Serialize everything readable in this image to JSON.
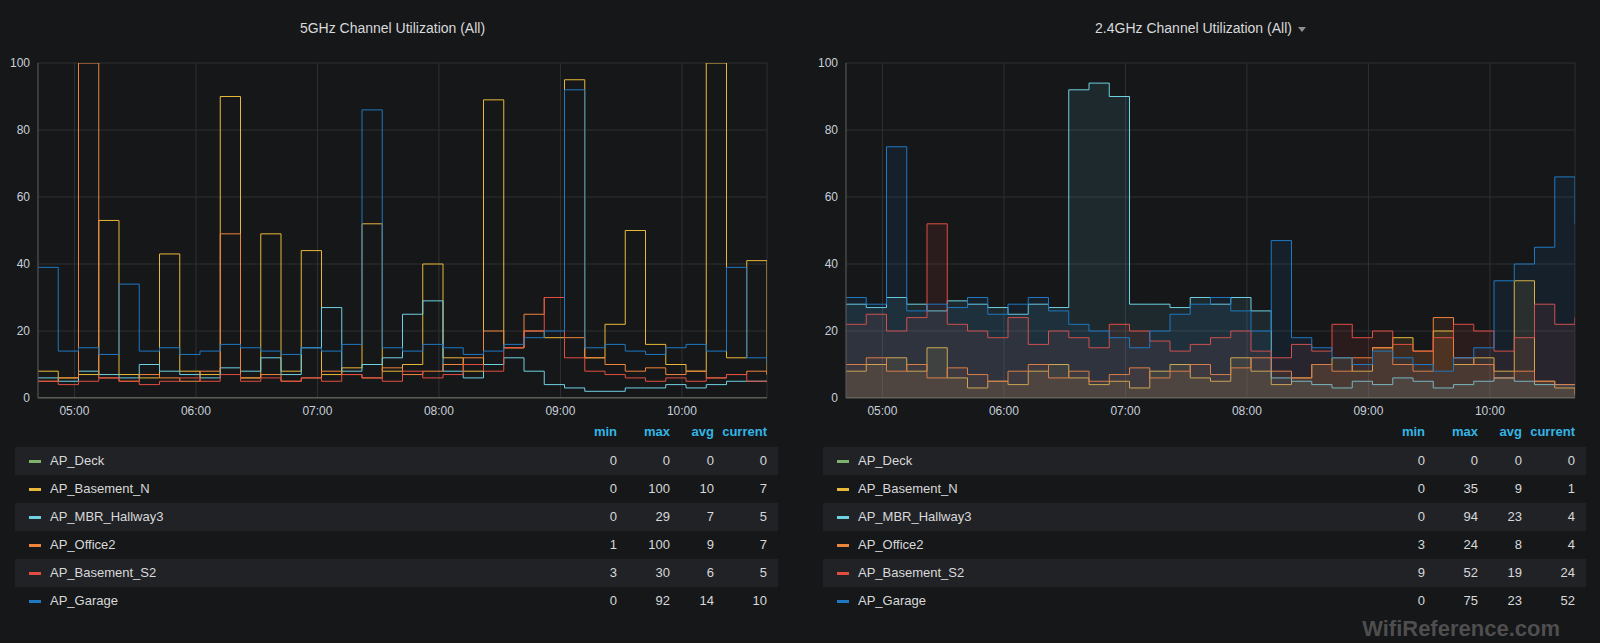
{
  "watermark": "WifiReference.com",
  "chart_data": [
    {
      "type": "line",
      "title": "5GHz Channel Utilization (All)",
      "grid": true,
      "legend_columns": [
        "min",
        "max",
        "avg",
        "current"
      ],
      "x": [
        282,
        292,
        302,
        312,
        322,
        332,
        342,
        352,
        362,
        372,
        382,
        392,
        402,
        412,
        422,
        432,
        442,
        452,
        462,
        472,
        482,
        492,
        502,
        512,
        522,
        532,
        542,
        552,
        562,
        572,
        582,
        592,
        602,
        612,
        622,
        632,
        642
      ],
      "xlim": [
        282,
        642
      ],
      "xticks": [
        {
          "value": 300,
          "label": "05:00"
        },
        {
          "value": 360,
          "label": "06:00"
        },
        {
          "value": 420,
          "label": "07:00"
        },
        {
          "value": 480,
          "label": "08:00"
        },
        {
          "value": 540,
          "label": "09:00"
        },
        {
          "value": 600,
          "label": "10:00"
        }
      ],
      "ylim": [
        0,
        100
      ],
      "yticks": [
        0,
        20,
        40,
        60,
        80,
        100
      ],
      "series": [
        {
          "name": "AP_Deck",
          "color": "#7eb26d",
          "min": 0,
          "max": 0,
          "avg": 0,
          "current": 0,
          "values": [
            0,
            0,
            0,
            0,
            0,
            0,
            0,
            0,
            0,
            0,
            0,
            0,
            0,
            0,
            0,
            0,
            0,
            0,
            0,
            0,
            0,
            0,
            0,
            0,
            0,
            0,
            0,
            0,
            0,
            0,
            0,
            0,
            0,
            0,
            0,
            0,
            0
          ]
        },
        {
          "name": "AP_Basement_N",
          "color": "#eab839",
          "min": 0,
          "max": 100,
          "avg": 10,
          "current": 7,
          "values": [
            8,
            6,
            7,
            53,
            7,
            6,
            43,
            8,
            7,
            90,
            6,
            49,
            8,
            44,
            7,
            9,
            52,
            8,
            10,
            40,
            12,
            8,
            89,
            15,
            20,
            18,
            95,
            12,
            22,
            50,
            16,
            10,
            8,
            100,
            12,
            41,
            7
          ]
        },
        {
          "name": "AP_MBR_Hallway3",
          "color": "#6ed0e0",
          "min": 0,
          "max": 29,
          "avg": 7,
          "current": 5,
          "values": [
            6,
            5,
            8,
            7,
            6,
            10,
            8,
            7,
            6,
            9,
            8,
            12,
            7,
            15,
            27,
            8,
            10,
            12,
            25,
            29,
            8,
            6,
            10,
            12,
            8,
            4,
            3,
            2,
            2,
            3,
            3,
            4,
            3,
            4,
            5,
            5,
            5
          ]
        },
        {
          "name": "AP_Office2",
          "color": "#ef843c",
          "min": 1,
          "max": 100,
          "avg": 9,
          "current": 7,
          "values": [
            5,
            6,
            100,
            6,
            5,
            7,
            6,
            5,
            8,
            49,
            6,
            7,
            5,
            6,
            8,
            7,
            6,
            9,
            7,
            8,
            10,
            12,
            20,
            15,
            25,
            30,
            18,
            12,
            10,
            8,
            9,
            7,
            8,
            6,
            7,
            8,
            7
          ]
        },
        {
          "name": "AP_Basement_S2",
          "color": "#e24d42",
          "min": 3,
          "max": 30,
          "avg": 6,
          "current": 5,
          "values": [
            5,
            4,
            5,
            6,
            5,
            4,
            5,
            6,
            5,
            7,
            5,
            6,
            5,
            6,
            5,
            7,
            6,
            5,
            8,
            6,
            7,
            10,
            8,
            15,
            20,
            30,
            12,
            8,
            7,
            6,
            5,
            6,
            5,
            6,
            7,
            5,
            5
          ]
        },
        {
          "name": "AP_Garage",
          "color": "#1f78c1",
          "min": 0,
          "max": 92,
          "avg": 14,
          "current": 10,
          "values": [
            39,
            14,
            15,
            13,
            34,
            14,
            15,
            13,
            14,
            16,
            15,
            14,
            13,
            15,
            14,
            16,
            86,
            15,
            14,
            16,
            15,
            13,
            14,
            16,
            18,
            20,
            92,
            15,
            16,
            14,
            13,
            15,
            16,
            14,
            39,
            12,
            10
          ]
        }
      ]
    },
    {
      "type": "area",
      "title": "2.4GHz Channel Utilization (All)",
      "grid": true,
      "legend_columns": [
        "min",
        "max",
        "avg",
        "current"
      ],
      "x": [
        282,
        292,
        302,
        312,
        322,
        332,
        342,
        352,
        362,
        372,
        382,
        392,
        402,
        412,
        422,
        432,
        442,
        452,
        462,
        472,
        482,
        492,
        502,
        512,
        522,
        532,
        542,
        552,
        562,
        572,
        582,
        592,
        602,
        612,
        622,
        632,
        642
      ],
      "xlim": [
        282,
        642
      ],
      "xticks": [
        {
          "value": 300,
          "label": "05:00"
        },
        {
          "value": 360,
          "label": "06:00"
        },
        {
          "value": 420,
          "label": "07:00"
        },
        {
          "value": 480,
          "label": "08:00"
        },
        {
          "value": 540,
          "label": "09:00"
        },
        {
          "value": 600,
          "label": "10:00"
        }
      ],
      "ylim": [
        0,
        100
      ],
      "yticks": [
        0,
        20,
        40,
        60,
        80,
        100
      ],
      "series": [
        {
          "name": "AP_Deck",
          "color": "#7eb26d",
          "min": 0,
          "max": 0,
          "avg": 0,
          "current": 0,
          "values": [
            0,
            0,
            0,
            0,
            0,
            0,
            0,
            0,
            0,
            0,
            0,
            0,
            0,
            0,
            0,
            0,
            0,
            0,
            0,
            0,
            0,
            0,
            0,
            0,
            0,
            0,
            0,
            0,
            0,
            0,
            0,
            0,
            0,
            0,
            0,
            0,
            0
          ]
        },
        {
          "name": "AP_Basement_N",
          "color": "#eab839",
          "min": 0,
          "max": 35,
          "avg": 9,
          "current": 1,
          "values": [
            8,
            10,
            12,
            8,
            15,
            6,
            3,
            5,
            4,
            8,
            10,
            6,
            4,
            5,
            3,
            8,
            10,
            6,
            5,
            12,
            8,
            4,
            6,
            10,
            12,
            8,
            15,
            18,
            14,
            20,
            10,
            12,
            8,
            35,
            5,
            3,
            1
          ]
        },
        {
          "name": "AP_MBR_Hallway3",
          "color": "#6ed0e0",
          "min": 0,
          "max": 94,
          "avg": 23,
          "current": 4,
          "values": [
            28,
            27,
            30,
            28,
            26,
            29,
            28,
            27,
            25,
            28,
            27,
            92,
            94,
            90,
            28,
            28,
            27,
            30,
            28,
            30,
            26,
            6,
            5,
            4,
            3,
            5,
            4,
            6,
            5,
            3,
            4,
            5,
            6,
            5,
            4,
            4,
            4
          ]
        },
        {
          "name": "AP_Office2",
          "color": "#ef843c",
          "min": 3,
          "max": 24,
          "avg": 8,
          "current": 4,
          "values": [
            10,
            12,
            8,
            10,
            6,
            9,
            7,
            5,
            8,
            10,
            6,
            8,
            5,
            7,
            9,
            6,
            8,
            10,
            7,
            9,
            12,
            8,
            6,
            10,
            8,
            12,
            15,
            10,
            8,
            24,
            12,
            10,
            6,
            8,
            5,
            4,
            4
          ]
        },
        {
          "name": "AP_Basement_S2",
          "color": "#e24d42",
          "min": 9,
          "max": 52,
          "avg": 19,
          "current": 24,
          "values": [
            22,
            25,
            20,
            24,
            52,
            22,
            20,
            18,
            24,
            16,
            20,
            18,
            15,
            22,
            20,
            17,
            14,
            16,
            18,
            20,
            14,
            12,
            16,
            14,
            22,
            18,
            20,
            16,
            14,
            18,
            22,
            20,
            14,
            18,
            28,
            22,
            24
          ]
        },
        {
          "name": "AP_Garage",
          "color": "#1f78c1",
          "min": 0,
          "max": 75,
          "avg": 23,
          "current": 52,
          "values": [
            30,
            28,
            75,
            26,
            28,
            27,
            30,
            25,
            28,
            30,
            26,
            22,
            20,
            18,
            15,
            20,
            25,
            28,
            30,
            26,
            20,
            47,
            18,
            15,
            12,
            10,
            14,
            12,
            10,
            8,
            12,
            15,
            35,
            40,
            45,
            66,
            52
          ]
        }
      ]
    }
  ]
}
